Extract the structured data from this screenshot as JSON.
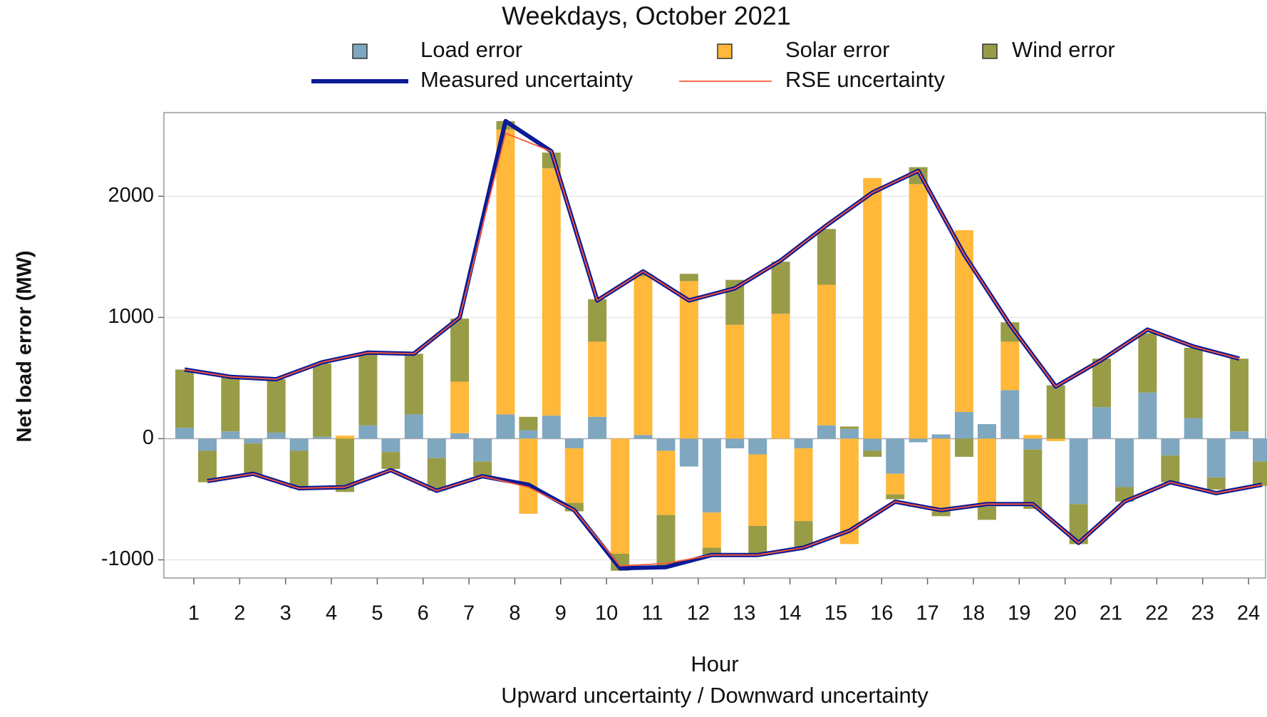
{
  "chart_data": {
    "type": "bar",
    "title": "Weekdays, October 2021",
    "y_label": "Net load error (MW)",
    "x_label": "Hour",
    "x_sublabel": "Upward uncertainty / Downward uncertainty",
    "categories": [
      "1",
      "2",
      "3",
      "4",
      "5",
      "6",
      "7",
      "8",
      "9",
      "10",
      "11",
      "12",
      "13",
      "14",
      "15",
      "16",
      "17",
      "18",
      "19",
      "20",
      "21",
      "22",
      "23",
      "24"
    ],
    "series": [
      {
        "name": "Load error",
        "type": "bar",
        "color": "#7fa7bf",
        "upward": [
          90,
          60,
          50,
          15,
          110,
          200,
          45,
          200,
          190,
          180,
          30,
          -230,
          -80,
          0,
          110,
          -100,
          -30,
          220,
          400,
          0,
          260,
          380,
          170,
          60
        ],
        "downward": [
          -100,
          -40,
          -100,
          0,
          -110,
          -160,
          -190,
          70,
          -80,
          0,
          -100,
          -610,
          -130,
          -80,
          80,
          -290,
          35,
          120,
          -90,
          -540,
          -400,
          -140,
          -320,
          -190
        ]
      },
      {
        "name": "Solar error",
        "type": "bar",
        "color": "#ffb83a",
        "upward": [
          0,
          0,
          0,
          0,
          0,
          0,
          425,
          2350,
          2040,
          620,
          1310,
          1300,
          940,
          1030,
          1160,
          2150,
          2100,
          1500,
          400,
          -20,
          0,
          0,
          0,
          0
        ],
        "downward": [
          0,
          0,
          0,
          25,
          0,
          0,
          0,
          -620,
          -450,
          -950,
          -530,
          -290,
          -590,
          -600,
          -870,
          -170,
          -600,
          -560,
          30,
          0,
          0,
          0,
          0,
          0
        ]
      },
      {
        "name": "Wind error",
        "type": "bar",
        "color": "#999c47",
        "upward": [
          480,
          450,
          440,
          605,
          590,
          500,
          520,
          70,
          130,
          350,
          20,
          60,
          370,
          430,
          460,
          -50,
          140,
          -150,
          160,
          440,
          400,
          490,
          580,
          600
        ],
        "downward": [
          -260,
          -260,
          -310,
          -440,
          -140,
          -270,
          -120,
          110,
          -70,
          -140,
          -420,
          -60,
          -240,
          -220,
          20,
          -40,
          -40,
          -110,
          -490,
          -330,
          -120,
          -220,
          -100,
          -200
        ]
      },
      {
        "name": "Measured uncertainty",
        "type": "line",
        "color": "#0b1a96",
        "upward": [
          570,
          510,
          490,
          630,
          710,
          700,
          1000,
          2620,
          2370,
          1140,
          1380,
          1140,
          1240,
          1470,
          1760,
          2030,
          2210,
          1520,
          940,
          430,
          650,
          900,
          760,
          660
        ],
        "downward": [
          -350,
          -290,
          -410,
          -400,
          -260,
          -430,
          -310,
          -380,
          -590,
          -1070,
          -1060,
          -960,
          -960,
          -900,
          -760,
          -520,
          -590,
          -540,
          -540,
          -860,
          -520,
          -360,
          -450,
          -380
        ]
      },
      {
        "name": "RSE uncertainty",
        "type": "line",
        "color": "#ff5733",
        "upward": [
          570,
          510,
          490,
          630,
          710,
          700,
          1000,
          2520,
          2370,
          1140,
          1380,
          1140,
          1240,
          1470,
          1760,
          2030,
          2210,
          1520,
          940,
          430,
          650,
          900,
          760,
          660
        ],
        "downward": [
          -350,
          -290,
          -410,
          -400,
          -260,
          -430,
          -310,
          -400,
          -590,
          -1050,
          -1030,
          -960,
          -960,
          -900,
          -760,
          -520,
          -590,
          -540,
          -540,
          -860,
          -520,
          -360,
          -450,
          -380
        ]
      }
    ],
    "ylim": [
      -1150,
      2690
    ],
    "yticks": [
      -1000,
      0,
      1000,
      2000
    ],
    "grid": true
  }
}
